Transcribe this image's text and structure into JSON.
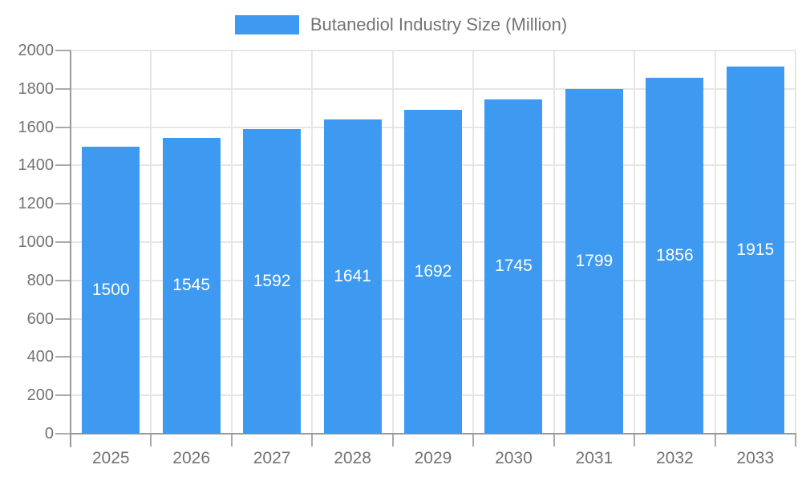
{
  "legend": {
    "label": "Butanediol Industry Size (Million)"
  },
  "chart_data": {
    "type": "bar",
    "title": "Butanediol Industry Size (Million)",
    "categories": [
      "2025",
      "2026",
      "2027",
      "2028",
      "2029",
      "2030",
      "2031",
      "2032",
      "2033"
    ],
    "values": [
      1500,
      1545,
      1592,
      1641,
      1692,
      1745,
      1799,
      1856,
      1915
    ],
    "xlabel": "",
    "ylabel": "",
    "ylim": [
      0,
      2000
    ],
    "yticks": [
      0,
      200,
      400,
      600,
      800,
      1000,
      1200,
      1400,
      1600,
      1800,
      2000
    ],
    "grid": true,
    "legend_position": "top-center",
    "data_labels": "inside-center-white",
    "colors": {
      "bar": "#3D9AF0",
      "grid": "#e6e6e6",
      "axis": "#999999",
      "tick": "#aaaaaa",
      "text": "#737373",
      "bar_label": "#ffffff",
      "background": "#ffffff"
    }
  }
}
